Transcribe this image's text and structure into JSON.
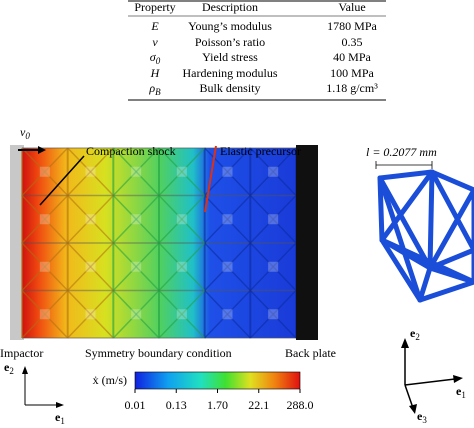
{
  "table": {
    "headers": [
      "Property",
      "Description",
      "Value"
    ],
    "rows": [
      [
        {
          "main": "E"
        },
        "Young’s modulus",
        "1780 MPa"
      ],
      [
        {
          "main": "ν"
        },
        "Poisson’s ratio",
        "0.35"
      ],
      [
        {
          "main": "σ",
          "sub": "0"
        },
        "Yield stress",
        "40 MPa"
      ],
      [
        {
          "main": "H"
        },
        "Hardening modulus",
        "100 MPa"
      ],
      [
        {
          "main": "ρ",
          "sub": "B"
        },
        "Bulk density",
        "1.18 g/cm³"
      ]
    ]
  },
  "figure": {
    "velocity": {
      "main": "v",
      "sub": "0"
    },
    "compaction_label": "Compaction shock",
    "precursor_label": "Elastic precursor",
    "impactor_label": "Impactor",
    "symmetry_label": "Symmetry boundary condition",
    "backplate_label": "Back plate",
    "axes_left": [
      {
        "main": "e",
        "sub": "2"
      },
      {
        "main": "e",
        "sub": "1"
      }
    ],
    "colorbar": {
      "label": "ẋ (m/s)",
      "ticks": [
        "0.01",
        "0.13",
        "1.70",
        "22.1",
        "288.0"
      ]
    },
    "cell_label": "l = 0.2077 mm",
    "axes_right": [
      {
        "main": "e",
        "sub": "2"
      },
      {
        "main": "e",
        "sub": "1"
      },
      {
        "main": "e",
        "sub": "3"
      }
    ]
  }
}
